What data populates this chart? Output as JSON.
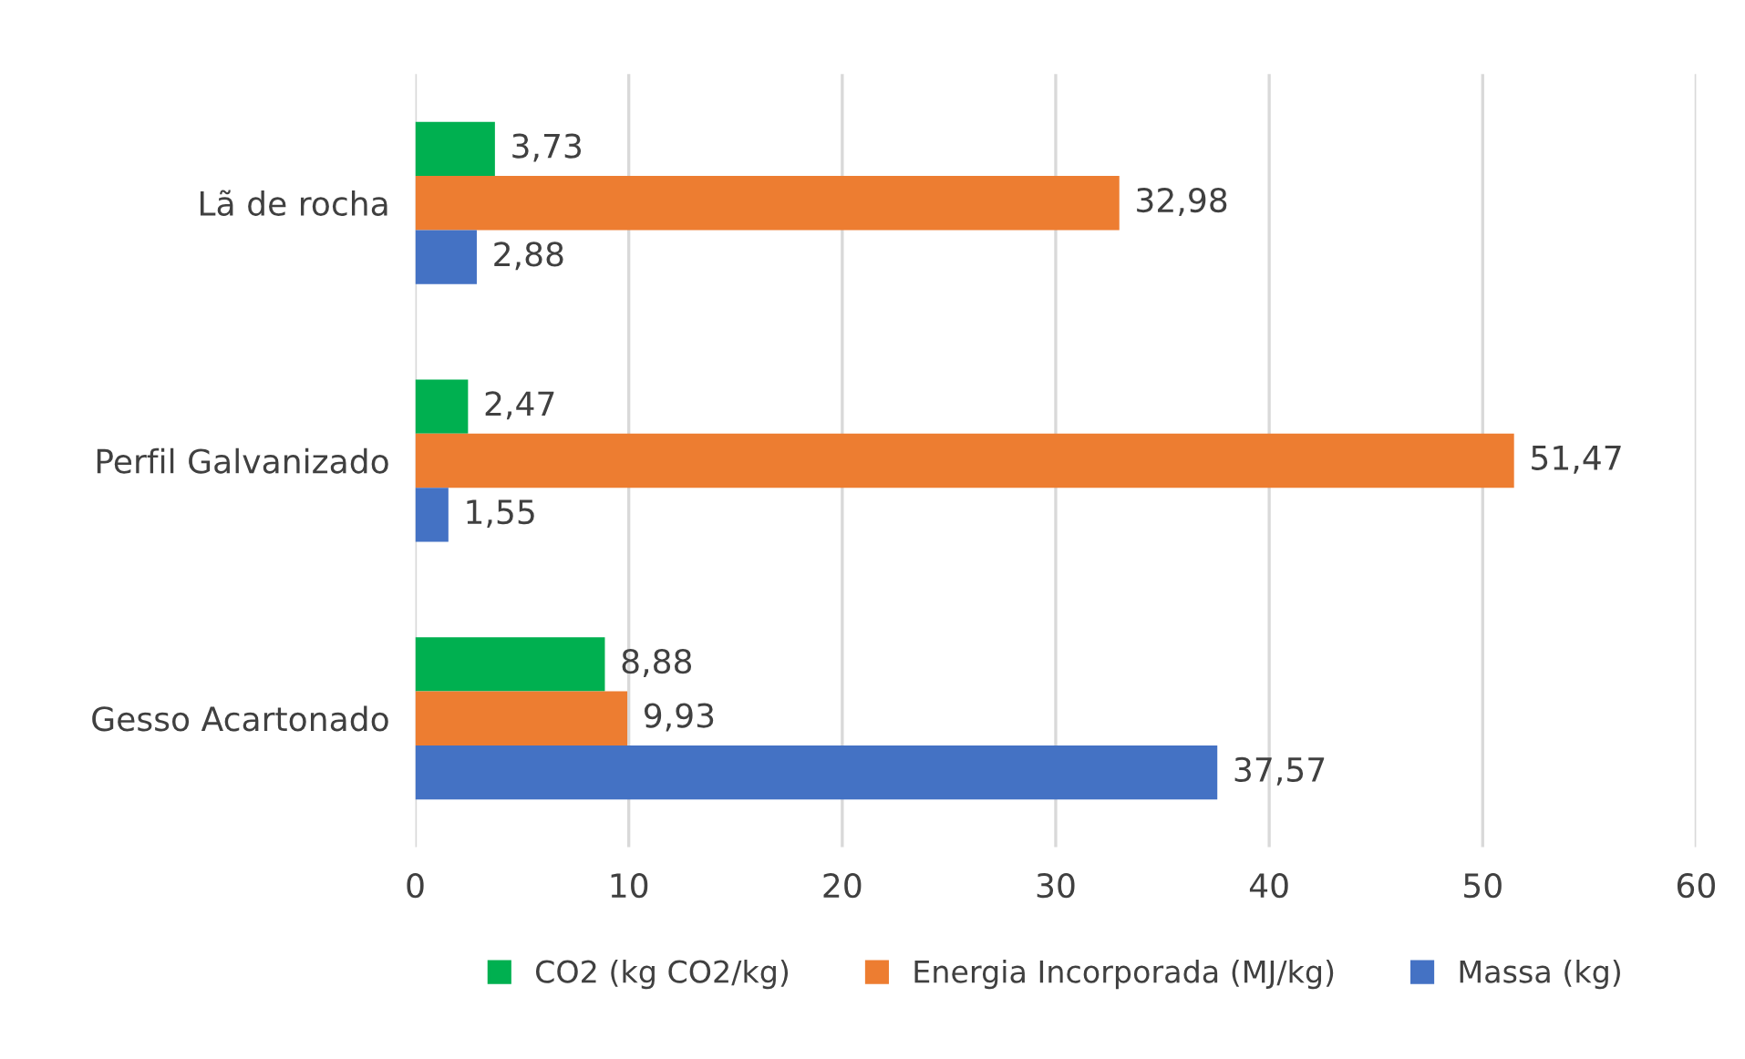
{
  "chart_data": {
    "type": "bar",
    "orientation": "horizontal",
    "categories": [
      "Lã de rocha",
      "Perfil Galvanizado",
      "Gesso Acartonado"
    ],
    "series": [
      {
        "name": "CO2 (kg CO2/kg)",
        "color": "#00b050",
        "values": [
          3.73,
          2.47,
          8.88
        ],
        "value_labels": [
          "3,73",
          "2,47",
          "8,88"
        ]
      },
      {
        "name": "Energia Incorporada (MJ/kg)",
        "color": "#ed7d31",
        "values": [
          32.98,
          51.47,
          9.93
        ],
        "value_labels": [
          "32,98",
          "51,47",
          "9,93"
        ]
      },
      {
        "name": "Massa (kg)",
        "color": "#4472c4",
        "values": [
          2.88,
          1.55,
          37.57
        ],
        "value_labels": [
          "2,88",
          "1,55",
          "37,57"
        ]
      }
    ],
    "xlim": [
      0,
      60
    ],
    "xticks": [
      0,
      10,
      20,
      30,
      40,
      50,
      60
    ],
    "grid": "x",
    "legend": "bottom"
  }
}
